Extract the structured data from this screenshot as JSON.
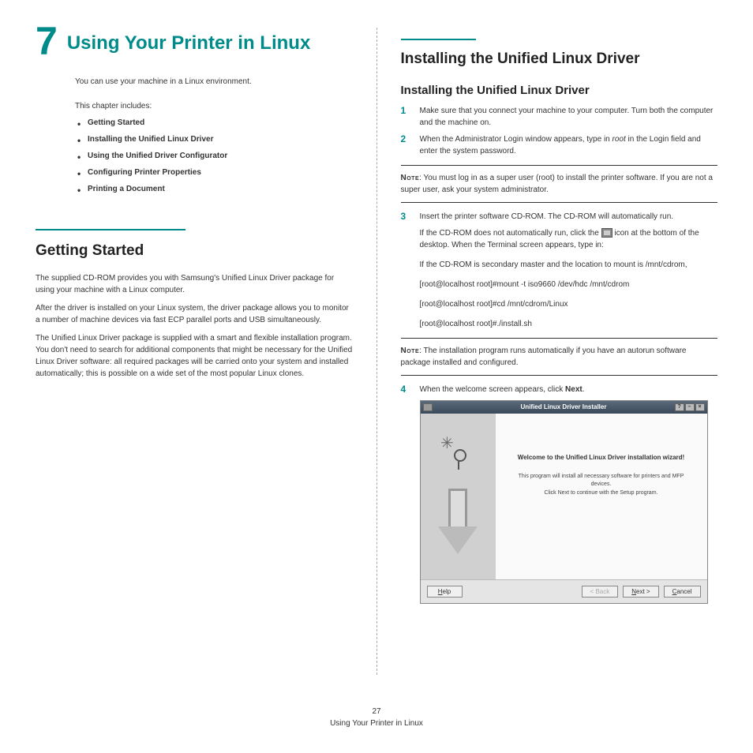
{
  "chapter": {
    "number": "7",
    "title": "Using Your Printer in Linux"
  },
  "intro": "You can use your machine in a Linux environment.",
  "toc_intro": "This chapter includes:",
  "toc": [
    "Getting Started",
    "Installing the Unified Linux Driver",
    "Using the Unified Driver Configurator",
    "Configuring Printer Properties",
    "Printing a Document"
  ],
  "getting_started": {
    "title": "Getting Started",
    "p1": "The supplied CD-ROM provides you with Samsung's Unified Linux Driver package for using your machine with a Linux computer.",
    "p2": "After the driver is installed on your Linux system, the driver package allows you to monitor a number of machine devices via fast ECP parallel ports and USB simultaneously.",
    "p3": "The Unified Linux Driver package is supplied with a smart and flexible installation program. You don't need to search for additional components that might be necessary for the Unified Linux Driver software: all required packages will be carried onto your system and installed automatically; this is possible on a wide set of the most popular Linux clones."
  },
  "install": {
    "title": "Installing the Unified Linux Driver",
    "subtitle": "Installing the Unified Linux Driver",
    "step1": "Make sure that you connect your machine to your computer. Turn both the computer and the machine on.",
    "step2_a": "When the Administrator Login window appears, type in ",
    "step2_root": "root",
    "step2_b": " in the Login field and enter the system password.",
    "note1_label": "Note",
    "note1": ": You must log in as a super user (root) to install the printer software. If you are not a super user, ask your system administrator.",
    "step3": "Insert the printer software CD-ROM. The CD-ROM will automatically run.",
    "step3_sub1_a": "If the CD-ROM does not automatically run, click the ",
    "step3_sub1_b": " icon at the bottom of the desktop. When the Terminal screen appears, type in:",
    "step3_sub2": "If the CD-ROM is secondary master and the location to mount is /mnt/cdrom,",
    "step3_cmd1": "[root@localhost root]#mount -t iso9660 /dev/hdc /mnt/cdrom",
    "step3_cmd2": "[root@localhost root]#cd /mnt/cdrom/Linux",
    "step3_cmd3": "[root@localhost root]#./install.sh",
    "note2_label": "Note",
    "note2": ": The installation program runs automatically if you have an autorun software package installed and configured.",
    "step4_a": "When the welcome screen appears, click ",
    "step4_next": "Next",
    "step4_b": "."
  },
  "installer": {
    "titlebar": "Unified Linux Driver Installer",
    "welcome": "Welcome to the Unified Linux Driver installation wizard!",
    "desc1": "This program will install all necessary software for printers and MFP devices.",
    "desc2": "Click Next to continue with the Setup program.",
    "help": "Help",
    "back": "< Back",
    "next": "Next >",
    "cancel": "Cancel"
  },
  "footer": {
    "page": "27",
    "title": "Using Your Printer in Linux"
  },
  "colors": {
    "accent": "#008b8b",
    "text": "#333333"
  }
}
